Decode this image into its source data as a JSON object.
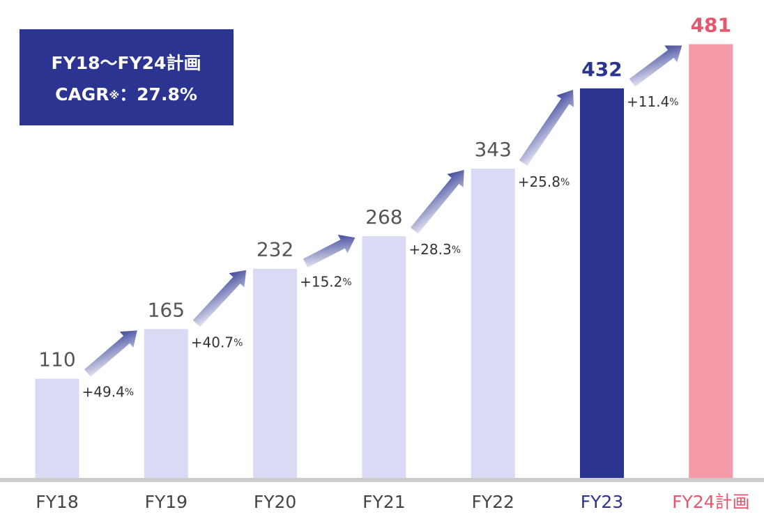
{
  "chart_data": {
    "type": "bar",
    "categories": [
      "FY18",
      "FY19",
      "FY20",
      "FY21",
      "FY22",
      "FY23",
      "FY24計画"
    ],
    "values": [
      110,
      165,
      232,
      268,
      343,
      432,
      481
    ],
    "colors": [
      "#d9dbf4",
      "#d9dbf4",
      "#d9dbf4",
      "#d9dbf4",
      "#d9dbf4",
      "#2b3491",
      "#f49aa8"
    ],
    "label_colors": [
      "#555555",
      "#555555",
      "#555555",
      "#555555",
      "#555555",
      "#2b3491",
      "#e8566e"
    ],
    "growth_labels": [
      "+49.4%",
      "+40.7%",
      "+15.2%",
      "+28.3%",
      "+25.8%",
      "+11.4%"
    ],
    "annotation": [
      "FY18〜FY24計画",
      "CAGR※：27.8%"
    ],
    "ylim": [
      0,
      530
    ]
  }
}
